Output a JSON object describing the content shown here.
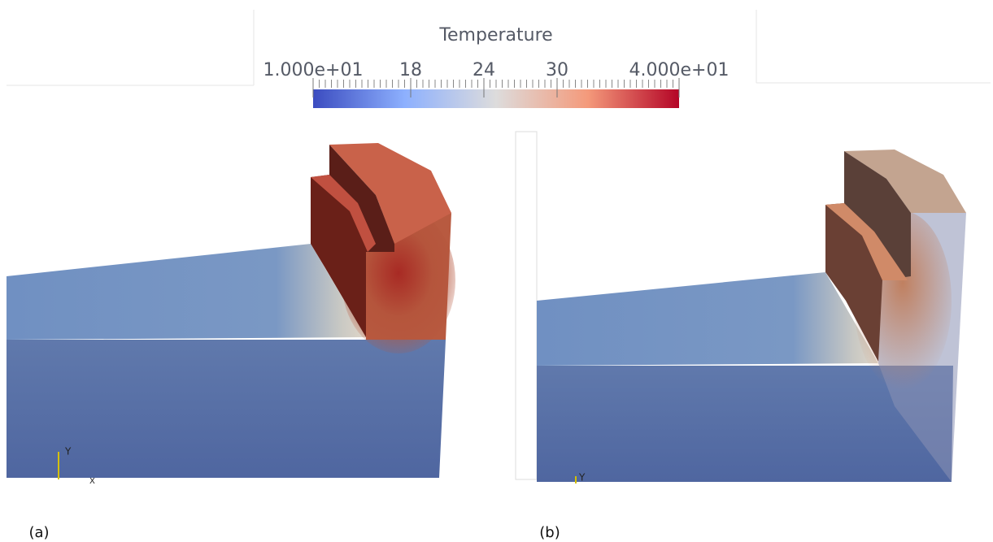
{
  "colorbar": {
    "title": "Temperature",
    "range": [
      10,
      40
    ],
    "ticks": [
      {
        "value": 10,
        "label": "1.000e+01"
      },
      18,
      24,
      30,
      {
        "value": 40,
        "label": "4.000e+01"
      }
    ]
  },
  "panels": [
    {
      "label": "(a)",
      "axis_labels": [
        "Y",
        "X"
      ]
    },
    {
      "label": "(b)",
      "axis_labels": [
        "Y"
      ]
    }
  ]
}
